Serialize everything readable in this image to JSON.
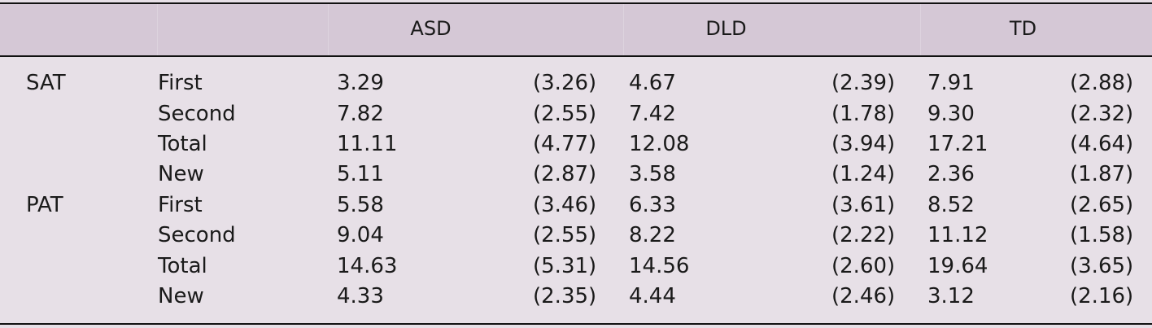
{
  "columns": {
    "group1": "ASD",
    "group2": "DLD",
    "group3": "TD"
  },
  "rows": [
    {
      "task": "SAT",
      "measure": "First",
      "v": [
        "3.29",
        "(3.26)",
        "4.67",
        "(2.39)",
        "7.91",
        "(2.88)"
      ]
    },
    {
      "task": "",
      "measure": "Second",
      "v": [
        "7.82",
        "(2.55)",
        "7.42",
        "(1.78)",
        "9.30",
        "(2.32)"
      ]
    },
    {
      "task": "",
      "measure": "Total",
      "v": [
        "11.11",
        "(4.77)",
        "12.08",
        "(3.94)",
        "17.21",
        "(4.64)"
      ]
    },
    {
      "task": "",
      "measure": "New",
      "v": [
        "5.11",
        "(2.87)",
        "3.58",
        "(1.24)",
        "2.36",
        "(1.87)"
      ]
    },
    {
      "task": "PAT",
      "measure": "First",
      "v": [
        "5.58",
        "(3.46)",
        "6.33",
        "(3.61)",
        "8.52",
        "(2.65)"
      ]
    },
    {
      "task": "",
      "measure": "Second",
      "v": [
        "9.04",
        "(2.55)",
        "8.22",
        "(2.22)",
        "11.12",
        "(1.58)"
      ]
    },
    {
      "task": "",
      "measure": "Total",
      "v": [
        "14.63",
        "(5.31)",
        "14.56",
        "(2.60)",
        "19.64",
        "(3.65)"
      ]
    },
    {
      "task": "",
      "measure": "New",
      "v": [
        "4.33",
        "(2.35)",
        "4.44",
        "(2.46)",
        "3.12",
        "(2.16)"
      ]
    }
  ]
}
